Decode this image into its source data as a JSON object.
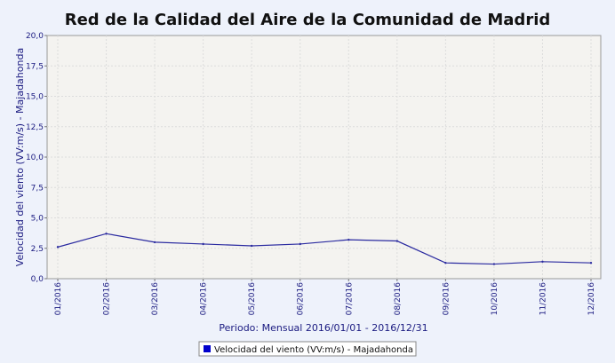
{
  "chart_data": {
    "type": "line",
    "title": "Red de la Calidad del Aire de la Comunidad de Madrid",
    "xlabel": "Periodo: Mensual 2016/01/01 - 2016/12/31",
    "ylabel": "Velocidad del viento (VV:m/s) - Majadahonda",
    "categories": [
      "01/2016",
      "02/2016",
      "03/2016",
      "04/2016",
      "05/2016",
      "06/2016",
      "07/2016",
      "08/2016",
      "09/2016",
      "10/2016",
      "11/2016",
      "12/2016"
    ],
    "y_ticks": [
      "0,0",
      "2,5",
      "5,0",
      "7,5",
      "10,0",
      "12,5",
      "15,0",
      "17,5",
      "20,0"
    ],
    "ylim": [
      0,
      20
    ],
    "grid": true,
    "legend_position": "bottom-center",
    "series": [
      {
        "name": "Velocidad del viento (VV:m/s) - Majadahonda",
        "values": [
          2.6,
          3.7,
          3.0,
          2.85,
          2.7,
          2.85,
          3.2,
          3.1,
          1.3,
          1.2,
          1.4,
          1.3
        ],
        "color": "#2a2aa0"
      }
    ],
    "colors": {
      "plot_background": "#f4f3f0",
      "page_background": "#eef2fb",
      "grid": "#dcdcdc",
      "axis_text": "#1a1a80",
      "legend_marker": "#0000cc"
    }
  }
}
